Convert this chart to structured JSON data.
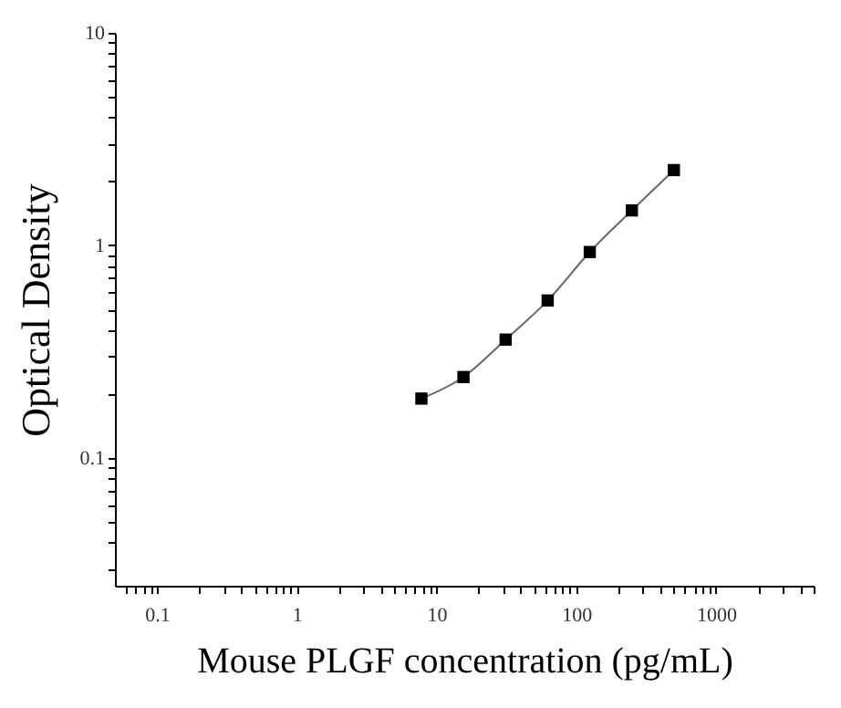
{
  "chart_data": {
    "type": "line",
    "xlabel": "Mouse PLGF concentration (pg/mL)",
    "ylabel": "Optical Density",
    "log": "xy",
    "grid": false,
    "marker": "square",
    "line_style": "solid",
    "x": [
      7.8,
      15.6,
      31.25,
      62.5,
      125,
      250,
      500
    ],
    "series": [
      {
        "color": "#000000",
        "values": [
          0.19,
          0.24,
          0.36,
          0.55,
          0.93,
          1.46,
          2.26
        ]
      }
    ],
    "xlim": [
      0.05,
      5000
    ],
    "ylim": [
      0.025,
      10
    ],
    "xticks": [
      {
        "value": 0.06,
        "label": null
      },
      {
        "value": 0.07,
        "label": null
      },
      {
        "value": 0.08,
        "label": null
      },
      {
        "value": 0.09,
        "label": null
      },
      0.1,
      {
        "value": 0.2,
        "label": null
      },
      {
        "value": 0.3,
        "label": null
      },
      {
        "value": 0.4,
        "label": null
      },
      {
        "value": 0.5,
        "label": null
      },
      {
        "value": 0.6,
        "label": null
      },
      {
        "value": 0.7,
        "label": null
      },
      {
        "value": 0.8,
        "label": null
      },
      {
        "value": 0.9,
        "label": null
      },
      1,
      {
        "value": 2,
        "label": null
      },
      {
        "value": 3,
        "label": null
      },
      {
        "value": 4,
        "label": null
      },
      {
        "value": 5,
        "label": null
      },
      {
        "value": 6,
        "label": null
      },
      {
        "value": 7,
        "label": null
      },
      {
        "value": 8,
        "label": null
      },
      {
        "value": 9,
        "label": null
      },
      10,
      {
        "value": 20,
        "label": null
      },
      {
        "value": 30,
        "label": null
      },
      {
        "value": 40,
        "label": null
      },
      {
        "value": 50,
        "label": null
      },
      {
        "value": 60,
        "label": null
      },
      {
        "value": 70,
        "label": null
      },
      {
        "value": 80,
        "label": null
      },
      {
        "value": 90,
        "label": null
      },
      100,
      {
        "value": 200,
        "label": null
      },
      {
        "value": 300,
        "label": null
      },
      {
        "value": 400,
        "label": null
      },
      {
        "value": 500,
        "label": null
      },
      {
        "value": 600,
        "label": null
      },
      {
        "value": 700,
        "label": null
      },
      {
        "value": 800,
        "label": null
      },
      {
        "value": 900,
        "label": null
      },
      1000,
      {
        "value": 2000,
        "label": null
      },
      {
        "value": 3000,
        "label": null
      },
      {
        "value": 4000,
        "label": null
      },
      {
        "value": 5000,
        "label": null
      }
    ],
    "yticks": [
      {
        "value": 0.03,
        "label": null
      },
      {
        "value": 0.04,
        "label": null
      },
      {
        "value": 0.05,
        "label": null
      },
      {
        "value": 0.06,
        "label": null
      },
      {
        "value": 0.07,
        "label": null
      },
      {
        "value": 0.08,
        "label": null
      },
      {
        "value": 0.09,
        "label": null
      },
      0.1,
      {
        "value": 0.2,
        "label": null
      },
      {
        "value": 0.3,
        "label": null
      },
      {
        "value": 0.4,
        "label": null
      },
      {
        "value": 0.5,
        "label": null
      },
      {
        "value": 0.6,
        "label": null
      },
      {
        "value": 0.7,
        "label": null
      },
      {
        "value": 0.8,
        "label": null
      },
      {
        "value": 0.9,
        "label": null
      },
      1,
      {
        "value": 2,
        "label": null
      },
      {
        "value": 3,
        "label": null
      },
      {
        "value": 4,
        "label": null
      },
      {
        "value": 5,
        "label": null
      },
      {
        "value": 6,
        "label": null
      },
      {
        "value": 7,
        "label": null
      },
      {
        "value": 8,
        "label": null
      },
      {
        "value": 9,
        "label": null
      },
      10
    ]
  }
}
